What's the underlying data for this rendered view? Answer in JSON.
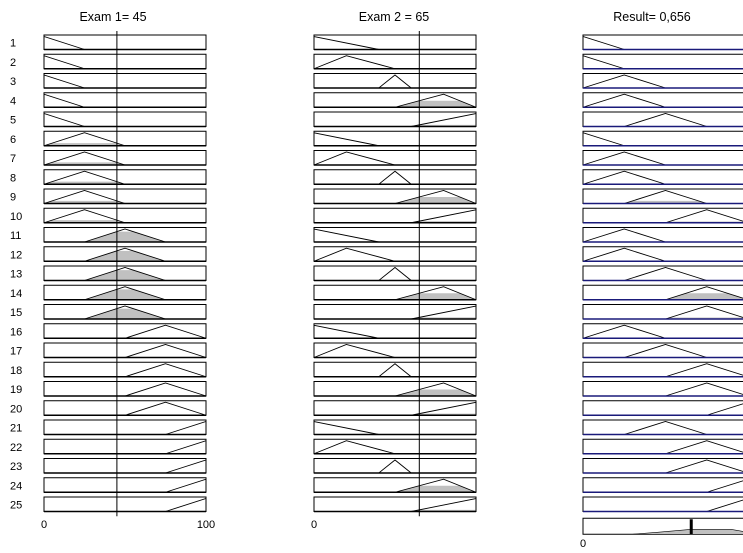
{
  "columns": [
    {
      "id": "exam1",
      "header": "Exam 1= 45",
      "type": "input",
      "range": [
        0,
        100
      ],
      "current_value": 45,
      "axis_labels": [
        "0",
        "100"
      ]
    },
    {
      "id": "exam2",
      "header": "Exam 2 = 65",
      "type": "input",
      "range": [
        0,
        100
      ],
      "current_value": 65,
      "axis_labels": [
        "0"
      ]
    },
    {
      "id": "result",
      "header": "Result= 0,656",
      "type": "output",
      "range": [
        0,
        1
      ],
      "current_value": 0.656,
      "axis_labels": [
        "0"
      ]
    }
  ],
  "rule_numbers": [
    "1",
    "2",
    "3",
    "4",
    "5",
    "6",
    "7",
    "8",
    "9",
    "10",
    "11",
    "12",
    "13",
    "14",
    "15",
    "16",
    "17",
    "18",
    "19",
    "20",
    "21",
    "22",
    "23",
    "24",
    "25"
  ],
  "membership_functions": {
    "exam1": {
      "low": [
        0,
        0,
        25
      ],
      "mid": [
        0,
        25,
        50
      ],
      "avg": [
        25,
        50,
        75
      ],
      "good": [
        50,
        75,
        100
      ],
      "high": [
        75,
        100,
        100
      ]
    },
    "exam2": {
      "low": [
        0,
        0,
        40
      ],
      "mid": [
        0,
        20,
        50
      ],
      "avg": [
        40,
        50,
        60
      ],
      "good": [
        50,
        80,
        100
      ],
      "high": [
        60,
        100,
        100
      ]
    },
    "result": {
      "very_low": [
        0,
        0,
        0.25
      ],
      "low": [
        0,
        0.25,
        0.5
      ],
      "medium": [
        0.25,
        0.5,
        0.75
      ],
      "high": [
        0.5,
        0.75,
        1
      ],
      "very_high": [
        0.75,
        1,
        1
      ]
    }
  },
  "rules": [
    {
      "exam1": "low",
      "exam2": "low",
      "result": "very_low",
      "firing": 0
    },
    {
      "exam1": "low",
      "exam2": "mid",
      "result": "very_low",
      "firing": 0
    },
    {
      "exam1": "low",
      "exam2": "avg",
      "result": "low",
      "firing": 0
    },
    {
      "exam1": "low",
      "exam2": "good",
      "result": "low",
      "firing": 0
    },
    {
      "exam1": "low",
      "exam2": "high",
      "result": "medium",
      "firing": 0
    },
    {
      "exam1": "mid",
      "exam2": "low",
      "result": "very_low",
      "firing": 0
    },
    {
      "exam1": "mid",
      "exam2": "mid",
      "result": "low",
      "firing": 0
    },
    {
      "exam1": "mid",
      "exam2": "avg",
      "result": "low",
      "firing": 0
    },
    {
      "exam1": "mid",
      "exam2": "good",
      "result": "medium",
      "firing": 0.2
    },
    {
      "exam1": "mid",
      "exam2": "high",
      "result": "high",
      "firing": 0.1
    },
    {
      "exam1": "avg",
      "exam2": "low",
      "result": "low",
      "firing": 0
    },
    {
      "exam1": "avg",
      "exam2": "mid",
      "result": "low",
      "firing": 0
    },
    {
      "exam1": "avg",
      "exam2": "avg",
      "result": "medium",
      "firing": 0
    },
    {
      "exam1": "avg",
      "exam2": "good",
      "result": "high",
      "firing": 0.5
    },
    {
      "exam1": "avg",
      "exam2": "high",
      "result": "high",
      "firing": 0.12
    },
    {
      "exam1": "good",
      "exam2": "low",
      "result": "low",
      "firing": 0
    },
    {
      "exam1": "good",
      "exam2": "mid",
      "result": "medium",
      "firing": 0
    },
    {
      "exam1": "good",
      "exam2": "avg",
      "result": "high",
      "firing": 0
    },
    {
      "exam1": "good",
      "exam2": "good",
      "result": "high",
      "firing": 0
    },
    {
      "exam1": "good",
      "exam2": "high",
      "result": "very_high",
      "firing": 0
    },
    {
      "exam1": "high",
      "exam2": "low",
      "result": "medium",
      "firing": 0
    },
    {
      "exam1": "high",
      "exam2": "mid",
      "result": "high",
      "firing": 0
    },
    {
      "exam1": "high",
      "exam2": "avg",
      "result": "high",
      "firing": 0
    },
    {
      "exam1": "high",
      "exam2": "good",
      "result": "very_high",
      "firing": 0
    },
    {
      "exam1": "high",
      "exam2": "high",
      "result": "very_high",
      "firing": 0
    }
  ],
  "aggregate": {
    "points": [
      [
        0.3,
        0
      ],
      [
        0.45,
        0.2
      ],
      [
        0.65,
        0.5
      ],
      [
        0.9,
        0.5
      ],
      [
        1,
        0.2
      ]
    ]
  },
  "colors": {
    "fill": "#c0c0c0",
    "line": "#000000",
    "cut": "#1a1a7a",
    "background": "#ffffff"
  }
}
